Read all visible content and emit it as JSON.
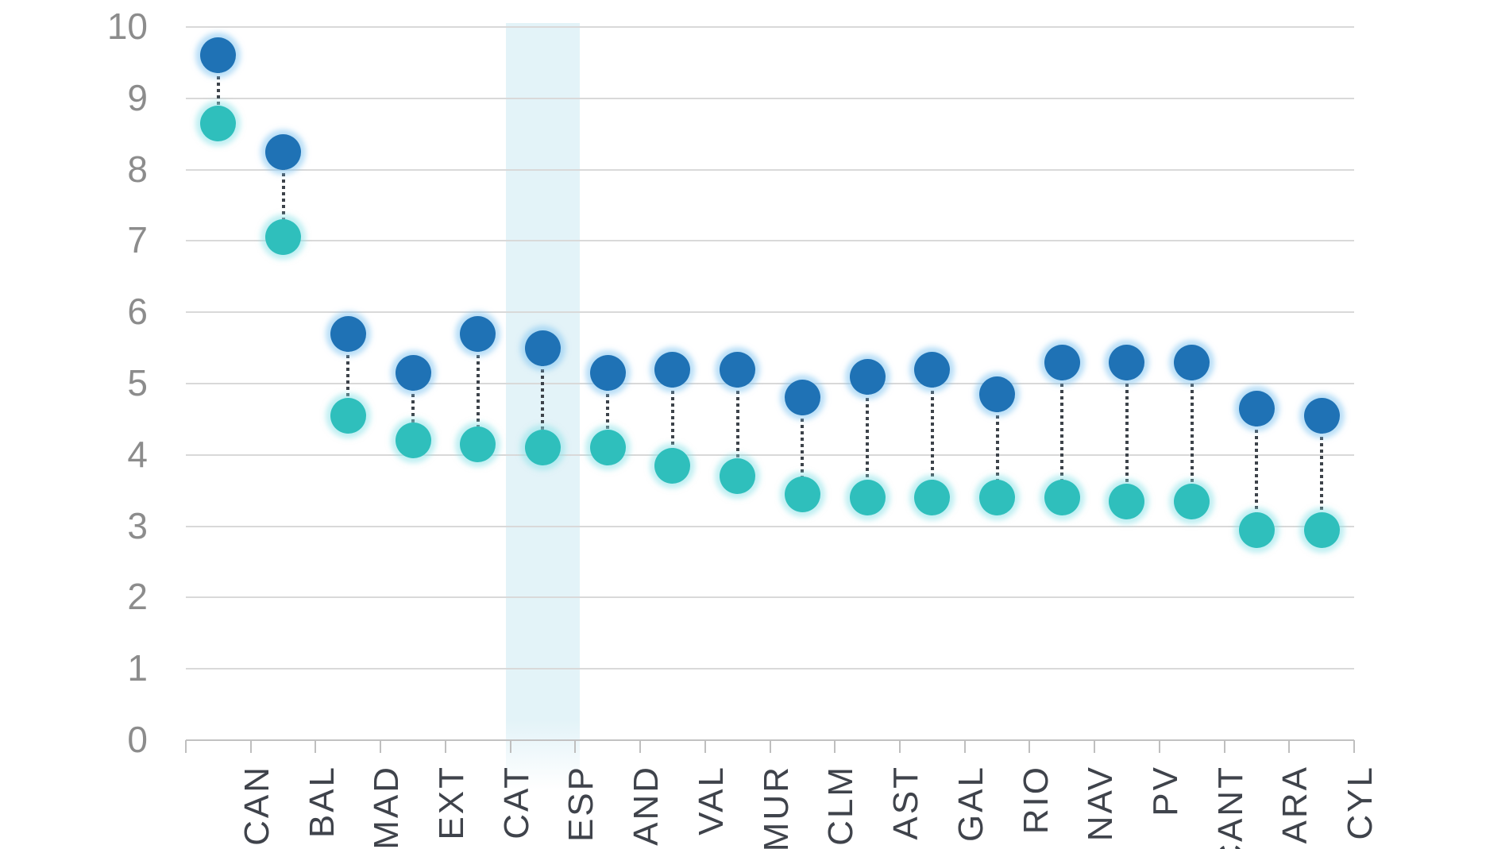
{
  "chart_data": {
    "type": "dumbbell",
    "title": "",
    "categories": [
      "CAN",
      "BAL",
      "MAD",
      "EXT",
      "CAT",
      "ESP",
      "AND",
      "VAL",
      "MUR",
      "CLM",
      "AST",
      "GAL",
      "RIO",
      "NAV",
      "PV",
      "CANT",
      "ARA",
      "CYL"
    ],
    "highlighted_category": "ESP",
    "series": [
      {
        "name": "upper",
        "marker_color": "#1f72b5",
        "values": [
          9.6,
          8.25,
          5.7,
          5.15,
          5.7,
          5.5,
          5.15,
          5.2,
          5.2,
          4.8,
          5.1,
          5.2,
          4.85,
          5.3,
          5.3,
          5.3,
          4.65,
          4.55
        ]
      },
      {
        "name": "lower",
        "marker_color": "#2fbfbc",
        "values": [
          8.65,
          7.05,
          4.55,
          4.2,
          4.15,
          4.1,
          4.1,
          3.85,
          3.7,
          3.45,
          3.4,
          3.4,
          3.4,
          3.4,
          3.35,
          3.35,
          2.95,
          2.95
        ]
      }
    ],
    "y_axis": {
      "min": 0,
      "max": 10,
      "step": 1,
      "tick_labels": [
        "0",
        "1",
        "2",
        "3",
        "4",
        "5",
        "6",
        "7",
        "8",
        "9",
        "10"
      ]
    },
    "x_axis": {
      "label_rotation_degrees": 90
    },
    "grid": true,
    "legend": "none",
    "colors": {
      "highlight_band": "#e3f3f8",
      "gridline": "#d9d9d9",
      "axis_line": "#c2c2c2",
      "tick_mark": "#bfbfbf",
      "connector": "#3d434a",
      "y_label": "#8c8c8c",
      "x_label": "#3f434b",
      "background": "#ffffff"
    }
  }
}
